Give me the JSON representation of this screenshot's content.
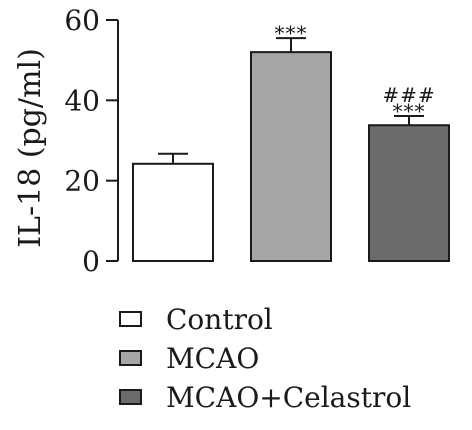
{
  "chart_data": {
    "type": "bar",
    "title": "",
    "xlabel": "",
    "ylabel": "IL-18 (pg/ml)",
    "ylim": [
      0,
      60
    ],
    "yticks": [
      0,
      20,
      40,
      60
    ],
    "grid": false,
    "legend_position": "bottom",
    "categories": [
      "Control",
      "MCAO",
      "MCAO+Celastrol"
    ],
    "values": [
      24.2,
      52.0,
      33.8
    ],
    "errors": [
      2.5,
      3.5,
      2.3
    ],
    "colors": [
      "#ffffff",
      "#a6a6a6",
      "#6b6b6b"
    ],
    "annotations": [
      [],
      [
        "***"
      ],
      [
        "###",
        "***"
      ]
    ]
  }
}
